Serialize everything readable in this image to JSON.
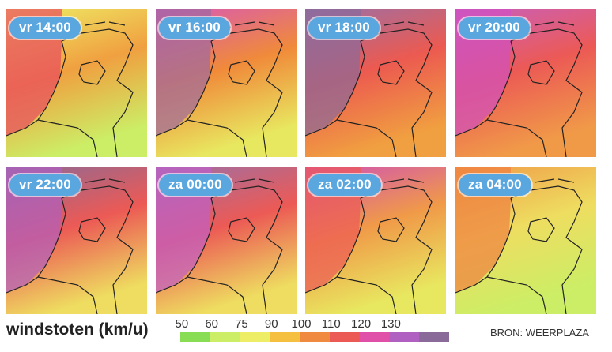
{
  "panels": [
    {
      "label": "vr 14:00",
      "top_color": "#eeee66",
      "mid_color": "#f0a040",
      "low_color": "#ccee66",
      "sea_color": "#e84a5f"
    },
    {
      "label": "vr 16:00",
      "top_color": "#d858b8",
      "mid_color": "#f08a3a",
      "low_color": "#e8e860",
      "sea_color": "#9e6aa0"
    },
    {
      "label": "vr 18:00",
      "top_color": "#9a70a8",
      "mid_color": "#ec5a50",
      "low_color": "#f0a040",
      "sea_color": "#8a6a9a"
    },
    {
      "label": "vr 20:00",
      "top_color": "#c860c0",
      "mid_color": "#ec5a55",
      "low_color": "#f09a48",
      "sea_color": "#d050c0"
    },
    {
      "label": "vr 22:00",
      "top_color": "#8a6a98",
      "mid_color": "#ec5a55",
      "low_color": "#eedd60",
      "sea_color": "#b060c0"
    },
    {
      "label": "za 00:00",
      "top_color": "#9a70a8",
      "mid_color": "#ec5a55",
      "low_color": "#eedd60",
      "sea_color": "#c060c8"
    },
    {
      "label": "za 02:00",
      "top_color": "#d050b8",
      "mid_color": "#f09a48",
      "low_color": "#e8e860",
      "sea_color": "#ec5a55"
    },
    {
      "label": "za 04:00",
      "top_color": "#f09a48",
      "mid_color": "#eedd60",
      "low_color": "#ccee66",
      "sea_color": "#f08040"
    }
  ],
  "legend": {
    "title": "windstoten (km/u)",
    "ticks": [
      "50",
      "60",
      "75",
      "90",
      "100",
      "110",
      "120",
      "130"
    ],
    "colors": [
      "#88dd55",
      "#ccee66",
      "#eeee66",
      "#f5c040",
      "#f08a40",
      "#ec5a55",
      "#e050a8",
      "#b060c0",
      "#8a6a98"
    ]
  },
  "source": "BRON: WEERPLAZA"
}
